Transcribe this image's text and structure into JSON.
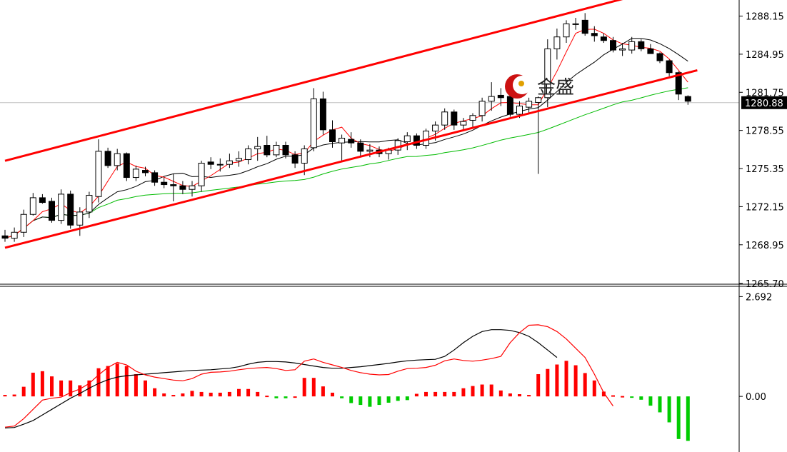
{
  "logo": {
    "text": "金盛",
    "accent_color": "#cc1111"
  },
  "chart_data": [
    {
      "type": "candlestick",
      "panel": "price",
      "title": "",
      "ylim": [
        1265.7,
        1289.5
      ],
      "ticks": [
        "1288.15",
        "1284.95",
        "1281.75",
        "1278.55",
        "1275.35",
        "1272.15",
        "1268.95",
        "1265.70"
      ],
      "current_price": {
        "value": 1280.88,
        "label": "1280.88"
      },
      "colors": {
        "candle": "#000000",
        "ma_fast": "#ff0000",
        "ma_mid": "#000000",
        "ma_slow": "#00bb00",
        "channel": "#ff0000"
      },
      "channel": {
        "upper": [
          [
            0,
            1276.0
          ],
          [
            69,
            1290.2
          ]
        ],
        "lower": [
          [
            0,
            1268.7
          ],
          [
            74,
            1283.6
          ]
        ]
      },
      "candles": [
        [
          1269.7,
          1270.2,
          1269.2,
          1269.5
        ],
        [
          1269.5,
          1270.4,
          1269.2,
          1270.0
        ],
        [
          1270.0,
          1271.9,
          1269.6,
          1271.5
        ],
        [
          1271.5,
          1273.3,
          1271.4,
          1272.9
        ],
        [
          1272.9,
          1273.2,
          1272.4,
          1272.5
        ],
        [
          1272.6,
          1272.9,
          1270.8,
          1271.0
        ],
        [
          1271.0,
          1273.6,
          1270.7,
          1273.2
        ],
        [
          1273.2,
          1273.5,
          1270.3,
          1270.6
        ],
        [
          1270.6,
          1272.1,
          1269.7,
          1271.7
        ],
        [
          1271.7,
          1273.4,
          1271.2,
          1273.1
        ],
        [
          1273.0,
          1277.8,
          1272.5,
          1276.8
        ],
        [
          1276.8,
          1277.1,
          1275.4,
          1275.6
        ],
        [
          1275.6,
          1277.0,
          1275.2,
          1276.6
        ],
        [
          1276.6,
          1276.7,
          1274.3,
          1274.6
        ],
        [
          1274.6,
          1275.6,
          1274.3,
          1275.3
        ],
        [
          1275.2,
          1275.5,
          1274.7,
          1275.0
        ],
        [
          1275.0,
          1275.2,
          1273.9,
          1274.2
        ],
        [
          1274.2,
          1274.6,
          1273.7,
          1274.0
        ],
        [
          1274.0,
          1274.9,
          1272.6,
          1273.9
        ],
        [
          1273.9,
          1274.3,
          1273.2,
          1273.6
        ],
        [
          1273.6,
          1274.3,
          1273.0,
          1273.9
        ],
        [
          1273.9,
          1276.0,
          1273.4,
          1275.8
        ],
        [
          1275.9,
          1276.3,
          1275.3,
          1275.7
        ],
        [
          1275.7,
          1276.2,
          1275.1,
          1275.7
        ],
        [
          1275.7,
          1276.6,
          1275.4,
          1276.0
        ],
        [
          1276.0,
          1276.8,
          1275.5,
          1276.2
        ],
        [
          1276.1,
          1277.3,
          1275.7,
          1277.0
        ],
        [
          1277.0,
          1278.0,
          1276.0,
          1277.2
        ],
        [
          1277.3,
          1278.1,
          1276.3,
          1276.5
        ],
        [
          1276.5,
          1277.6,
          1276.3,
          1277.3
        ],
        [
          1277.3,
          1277.6,
          1276.2,
          1276.5
        ],
        [
          1276.5,
          1276.8,
          1275.4,
          1275.8
        ],
        [
          1275.8,
          1277.3,
          1274.8,
          1277.0
        ],
        [
          1277.1,
          1282.1,
          1276.8,
          1281.2
        ],
        [
          1281.2,
          1281.8,
          1278.2,
          1278.6
        ],
        [
          1278.6,
          1279.4,
          1277.1,
          1277.6
        ],
        [
          1277.5,
          1278.2,
          1276.0,
          1277.9
        ],
        [
          1277.8,
          1278.4,
          1277.1,
          1277.5
        ],
        [
          1277.5,
          1277.8,
          1276.4,
          1276.8
        ],
        [
          1276.8,
          1277.4,
          1276.3,
          1276.9
        ],
        [
          1276.9,
          1277.2,
          1276.3,
          1276.6
        ],
        [
          1276.6,
          1277.1,
          1276.1,
          1276.9
        ],
        [
          1276.9,
          1277.9,
          1276.5,
          1277.7
        ],
        [
          1277.6,
          1278.4,
          1276.9,
          1278.1
        ],
        [
          1278.1,
          1278.3,
          1277.0,
          1277.3
        ],
        [
          1277.3,
          1278.7,
          1277.0,
          1278.5
        ],
        [
          1278.5,
          1279.3,
          1277.7,
          1279.0
        ],
        [
          1279.0,
          1280.4,
          1278.6,
          1280.1
        ],
        [
          1280.1,
          1280.3,
          1278.6,
          1279.0
        ],
        [
          1279.0,
          1279.6,
          1278.6,
          1279.3
        ],
        [
          1279.4,
          1280.0,
          1278.8,
          1279.8
        ],
        [
          1279.8,
          1281.3,
          1279.3,
          1281.0
        ],
        [
          1281.0,
          1282.6,
          1280.2,
          1281.4
        ],
        [
          1281.5,
          1282.1,
          1280.6,
          1281.3
        ],
        [
          1281.4,
          1281.6,
          1279.7,
          1279.9
        ],
        [
          1279.9,
          1281.0,
          1279.6,
          1280.6
        ],
        [
          1280.5,
          1281.3,
          1279.9,
          1281.0
        ],
        [
          1280.9,
          1281.4,
          1274.9,
          1281.3
        ],
        [
          1281.3,
          1286.2,
          1280.5,
          1285.4
        ],
        [
          1285.4,
          1287.1,
          1284.5,
          1286.4
        ],
        [
          1286.4,
          1287.8,
          1285.9,
          1287.5
        ],
        [
          1287.5,
          1288.0,
          1287.0,
          1287.5
        ],
        [
          1287.8,
          1288.4,
          1286.5,
          1286.7
        ],
        [
          1286.7,
          1287.3,
          1286.0,
          1286.5
        ],
        [
          1286.4,
          1286.7,
          1285.9,
          1286.1
        ],
        [
          1286.1,
          1286.4,
          1285.1,
          1285.3
        ],
        [
          1285.3,
          1285.9,
          1284.8,
          1285.4
        ],
        [
          1285.3,
          1286.4,
          1285.0,
          1286.0
        ],
        [
          1286.0,
          1286.2,
          1285.2,
          1285.4
        ],
        [
          1285.4,
          1285.8,
          1285.0,
          1285.0
        ],
        [
          1285.0,
          1285.1,
          1284.2,
          1284.4
        ],
        [
          1284.4,
          1284.5,
          1283.1,
          1283.4
        ],
        [
          1283.4,
          1283.5,
          1281.1,
          1281.6
        ],
        [
          1281.4,
          1281.5,
          1280.7,
          1281.0
        ]
      ]
    },
    {
      "type": "bar",
      "panel": "oscillator",
      "title": "",
      "ylim": [
        -1.5,
        2.95
      ],
      "ticks": [
        "2.692",
        "0.00"
      ],
      "colors": {
        "positive": "#ff0000",
        "negative": "#00cc00",
        "signal_fast": "#ff0000",
        "signal_slow": "#000000"
      },
      "values": [
        0.04,
        0.05,
        0.26,
        0.64,
        0.68,
        0.54,
        0.43,
        0.43,
        0.3,
        0.43,
        0.76,
        0.82,
        0.89,
        0.82,
        0.6,
        0.43,
        0.22,
        0.08,
        0.04,
        0.08,
        0.15,
        0.12,
        0.1,
        0.1,
        0.12,
        0.2,
        0.2,
        0.12,
        0.02,
        -0.05,
        -0.05,
        0.0,
        0.5,
        0.5,
        0.27,
        0.1,
        -0.05,
        -0.18,
        -0.23,
        -0.28,
        -0.23,
        -0.17,
        -0.12,
        -0.1,
        0.07,
        0.12,
        0.12,
        0.12,
        0.12,
        0.22,
        0.28,
        0.32,
        0.32,
        0.16,
        0.08,
        0.06,
        0.04,
        0.6,
        0.74,
        0.86,
        0.96,
        0.84,
        0.63,
        0.43,
        0.13,
        0.03,
        0.01,
        -0.03,
        -0.09,
        -0.25,
        -0.43,
        -0.7,
        -1.15,
        -1.2
      ],
      "signal_fast": [
        [
          0,
          -0.83
        ],
        [
          1,
          -0.8
        ],
        [
          2,
          -0.6
        ],
        [
          3,
          -0.35
        ],
        [
          4,
          -0.1
        ],
        [
          5,
          -0.05
        ],
        [
          6,
          -0.02
        ],
        [
          7,
          0.1
        ],
        [
          8,
          0.2
        ],
        [
          9,
          0.35
        ],
        [
          10,
          0.58
        ],
        [
          11,
          0.78
        ],
        [
          12,
          0.92
        ],
        [
          13,
          0.85
        ],
        [
          14,
          0.68
        ],
        [
          15,
          0.58
        ],
        [
          16,
          0.52
        ],
        [
          17,
          0.48
        ],
        [
          18,
          0.44
        ],
        [
          19,
          0.42
        ],
        [
          20,
          0.48
        ],
        [
          21,
          0.6
        ],
        [
          22,
          0.65
        ],
        [
          23,
          0.66
        ],
        [
          24,
          0.68
        ],
        [
          25,
          0.72
        ],
        [
          26,
          0.75
        ],
        [
          27,
          0.77
        ],
        [
          28,
          0.78
        ],
        [
          29,
          0.75
        ],
        [
          30,
          0.7
        ],
        [
          31,
          0.72
        ],
        [
          32,
          0.95
        ],
        [
          33,
          1.01
        ],
        [
          34,
          0.92
        ],
        [
          35,
          0.85
        ],
        [
          36,
          0.78
        ],
        [
          37,
          0.7
        ],
        [
          38,
          0.64
        ],
        [
          39,
          0.6
        ],
        [
          40,
          0.58
        ],
        [
          41,
          0.59
        ],
        [
          42,
          0.68
        ],
        [
          43,
          0.75
        ],
        [
          44,
          0.76
        ],
        [
          45,
          0.78
        ],
        [
          46,
          0.84
        ],
        [
          47,
          0.96
        ],
        [
          48,
          1.01
        ],
        [
          49,
          0.97
        ],
        [
          50,
          0.95
        ],
        [
          51,
          0.98
        ],
        [
          52,
          1.02
        ],
        [
          53,
          1.08
        ],
        [
          54,
          1.45
        ],
        [
          55,
          1.72
        ],
        [
          56,
          1.92
        ],
        [
          57,
          1.93
        ],
        [
          58,
          1.88
        ],
        [
          59,
          1.75
        ],
        [
          60,
          1.55
        ],
        [
          61,
          1.3
        ],
        [
          62,
          1.05
        ],
        [
          63,
          0.6
        ],
        [
          64,
          0.1
        ],
        [
          65,
          -0.26
        ]
      ],
      "signal_slow": [
        [
          0,
          -0.85
        ],
        [
          1,
          -0.84
        ],
        [
          2,
          -0.75
        ],
        [
          3,
          -0.65
        ],
        [
          4,
          -0.5
        ],
        [
          5,
          -0.35
        ],
        [
          6,
          -0.2
        ],
        [
          7,
          -0.05
        ],
        [
          8,
          0.08
        ],
        [
          9,
          0.22
        ],
        [
          10,
          0.35
        ],
        [
          11,
          0.45
        ],
        [
          12,
          0.52
        ],
        [
          13,
          0.56
        ],
        [
          14,
          0.58
        ],
        [
          15,
          0.6
        ],
        [
          16,
          0.62
        ],
        [
          17,
          0.64
        ],
        [
          18,
          0.66
        ],
        [
          19,
          0.68
        ],
        [
          20,
          0.7
        ],
        [
          21,
          0.71
        ],
        [
          22,
          0.72
        ],
        [
          23,
          0.74
        ],
        [
          24,
          0.76
        ],
        [
          25,
          0.8
        ],
        [
          26,
          0.87
        ],
        [
          27,
          0.92
        ],
        [
          28,
          0.94
        ],
        [
          29,
          0.94
        ],
        [
          30,
          0.93
        ],
        [
          31,
          0.9
        ],
        [
          32,
          0.86
        ],
        [
          33,
          0.82
        ],
        [
          34,
          0.78
        ],
        [
          35,
          0.76
        ],
        [
          36,
          0.76
        ],
        [
          37,
          0.78
        ],
        [
          38,
          0.8
        ],
        [
          39,
          0.83
        ],
        [
          40,
          0.86
        ],
        [
          41,
          0.89
        ],
        [
          42,
          0.93
        ],
        [
          43,
          0.96
        ],
        [
          44,
          0.98
        ],
        [
          45,
          0.99
        ],
        [
          46,
          1.0
        ],
        [
          47,
          1.08
        ],
        [
          48,
          1.25
        ],
        [
          49,
          1.45
        ],
        [
          50,
          1.62
        ],
        [
          51,
          1.75
        ],
        [
          52,
          1.8
        ],
        [
          53,
          1.8
        ],
        [
          54,
          1.78
        ],
        [
          55,
          1.72
        ],
        [
          56,
          1.62
        ],
        [
          57,
          1.45
        ],
        [
          58,
          1.25
        ],
        [
          59,
          1.05
        ]
      ]
    }
  ]
}
